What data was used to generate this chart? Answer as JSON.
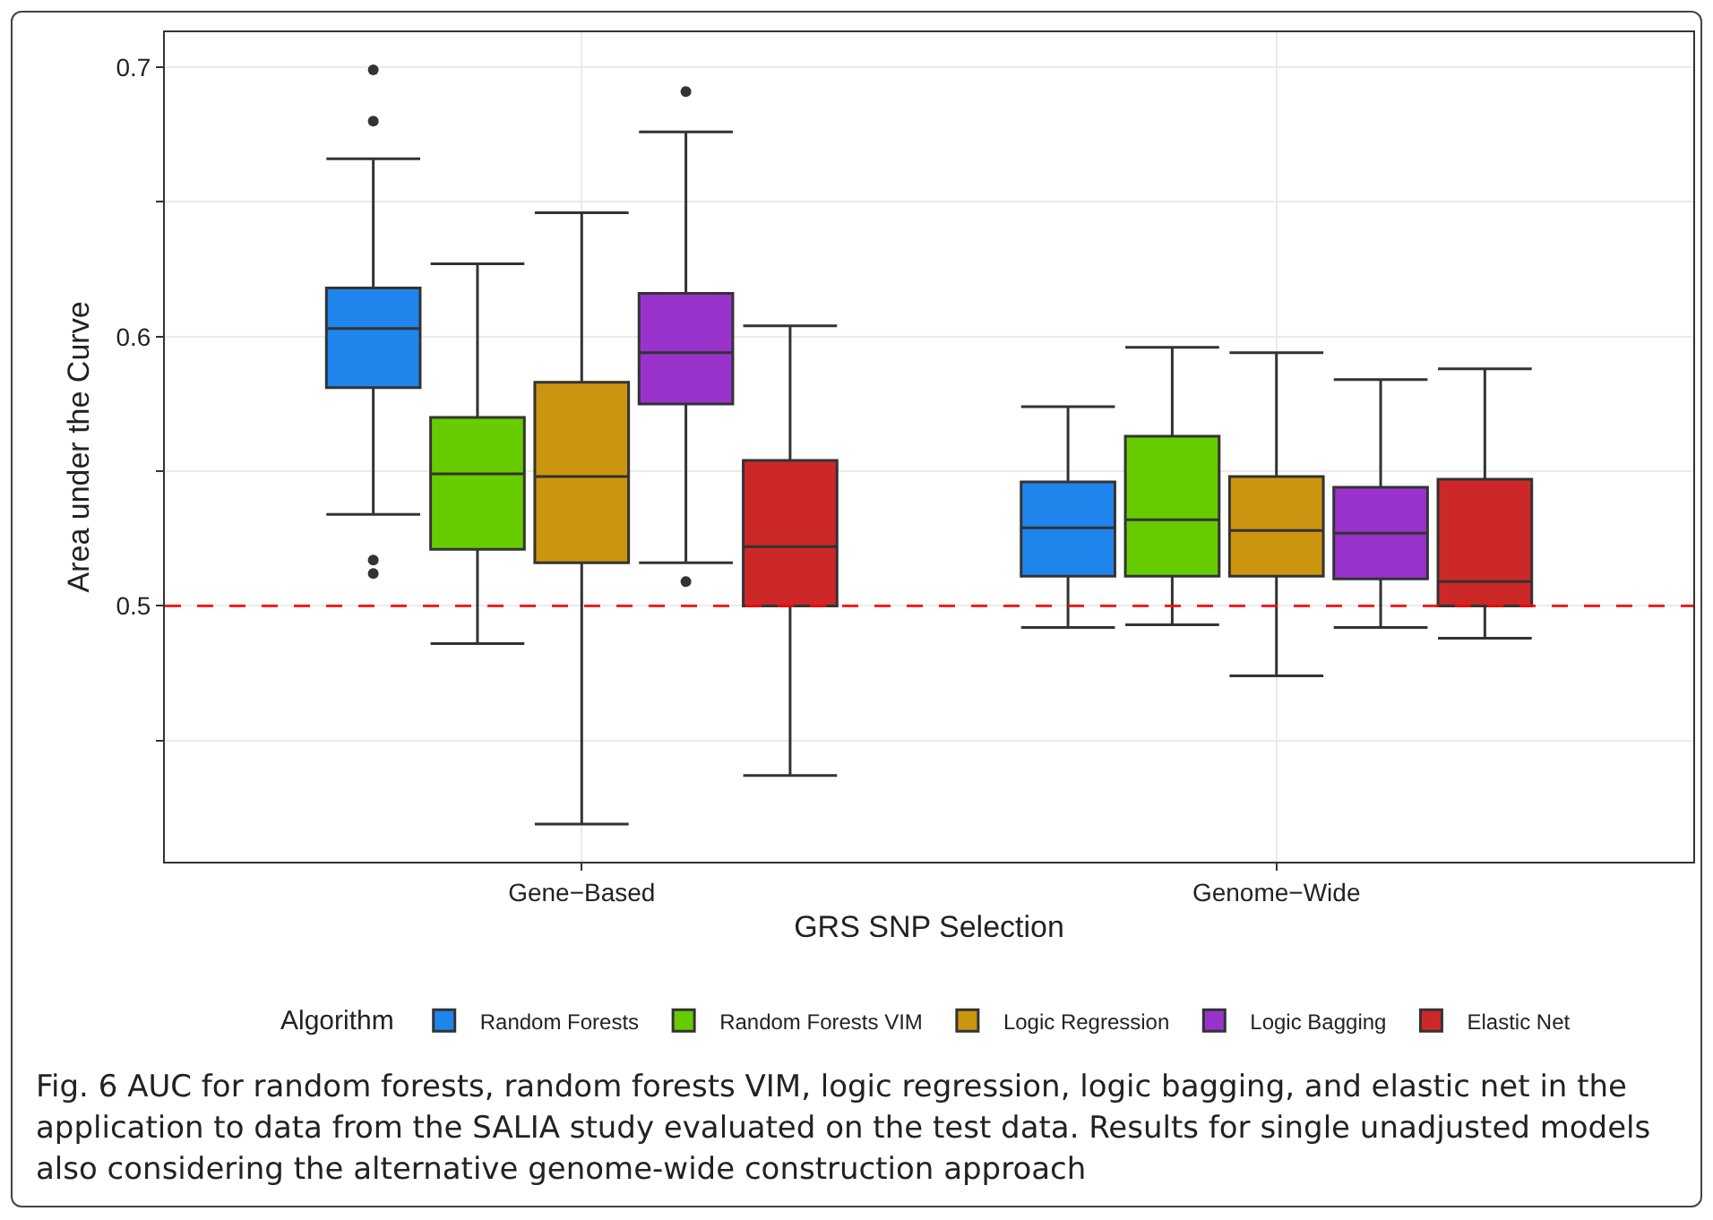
{
  "chart_data": {
    "type": "box",
    "xlabel": "GRS SNP Selection",
    "ylabel": "Area under the Curve",
    "legend_title": "Algorithm",
    "categories": [
      "Gene−Based",
      "Genome−Wide"
    ],
    "ylim": [
      0.405,
      0.713
    ],
    "yticks": [
      {
        "value": 0.45,
        "label": null
      },
      0.5,
      {
        "value": 0.55,
        "label": null
      },
      0.6,
      {
        "value": 0.65,
        "label": null
      },
      0.7
    ],
    "grid": true,
    "legend": "bottom",
    "ref_lines": [
      {
        "axis": "y",
        "value": 0.5,
        "color": "#ff0000",
        "line_style": "dashed"
      }
    ],
    "series": [
      {
        "name": "Random Forests",
        "color": "#1f85ec",
        "boxes": [
          {
            "low": 0.534,
            "q1": 0.581,
            "median": 0.603,
            "q3": 0.618,
            "high": 0.666,
            "outliers": [
              0.699,
              0.68,
              0.517,
              0.512
            ]
          },
          {
            "low": 0.492,
            "q1": 0.511,
            "median": 0.529,
            "q3": 0.546,
            "high": 0.574
          }
        ]
      },
      {
        "name": "Random Forests VIM",
        "color": "#66cc00",
        "boxes": [
          {
            "low": 0.486,
            "q1": 0.521,
            "median": 0.549,
            "q3": 0.57,
            "high": 0.627
          },
          {
            "low": 0.493,
            "q1": 0.511,
            "median": 0.532,
            "q3": 0.563,
            "high": 0.596
          }
        ]
      },
      {
        "name": "Logic Regression",
        "color": "#cc950f",
        "boxes": [
          {
            "low": 0.419,
            "q1": 0.516,
            "median": 0.548,
            "q3": 0.583,
            "high": 0.646
          },
          {
            "low": 0.474,
            "q1": 0.511,
            "median": 0.528,
            "q3": 0.548,
            "high": 0.594
          }
        ]
      },
      {
        "name": "Logic Bagging",
        "color": "#9933cc",
        "boxes": [
          {
            "low": 0.516,
            "q1": 0.575,
            "median": 0.594,
            "q3": 0.616,
            "high": 0.676,
            "outliers": [
              0.691,
              0.509
            ]
          },
          {
            "low": 0.492,
            "q1": 0.51,
            "median": 0.527,
            "q3": 0.544,
            "high": 0.584
          }
        ]
      },
      {
        "name": "Elastic Net",
        "color": "#cc2828",
        "boxes": [
          {
            "low": 0.437,
            "q1": 0.5,
            "median": 0.522,
            "q3": 0.554,
            "high": 0.604
          },
          {
            "low": 0.488,
            "q1": 0.5,
            "median": 0.509,
            "q3": 0.547,
            "high": 0.588
          }
        ]
      }
    ],
    "annotations": [
      "Fig. 6  AUC for random forests, random forests VIM, logic regression, logic bagging, and elastic net in the application to data from the SALIA study evaluated on the test data. Results for single unadjusted models also considering the alternative genome-wide construction approach"
    ]
  }
}
